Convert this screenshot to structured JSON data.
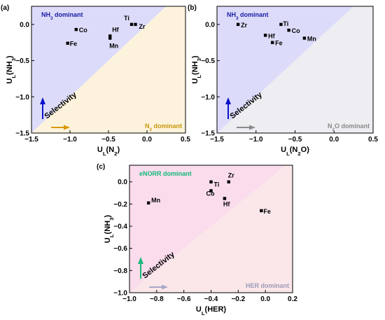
{
  "chart_data": [
    {
      "type": "scatter",
      "panel_label": "(a)",
      "xlim": [
        -1.5,
        0.5
      ],
      "ylim": [
        -1.5,
        0.25
      ],
      "xticks": [
        -1.5,
        -1.0,
        -0.5,
        0.0,
        0.5
      ],
      "yticks": [
        -1.5,
        -1.0,
        -0.5,
        0.0
      ],
      "xticklabels": [
        "−1.5",
        "−1.0",
        "−0.5",
        "0.0",
        "0.5"
      ],
      "yticklabels": [
        "−1.5",
        "−1.0",
        "−0.5",
        "0.0"
      ],
      "xlabel": {
        "main": "U",
        "sub": "L",
        "rest": "(N",
        "rest_sub": "2",
        "close": ")"
      },
      "ylabel": {
        "main": "U",
        "sub": "L",
        "rest": "(NH",
        "rest_sub": "3",
        "close": ")"
      },
      "upper_region": {
        "text": "NH",
        "sub": "3",
        "rest": " dominant",
        "color": "#1a1aa6",
        "fill": "#dcdcfa"
      },
      "lower_region": {
        "text": "N",
        "sub": "2",
        "rest": " dominant",
        "color": "#c8960a",
        "fill": "#fdf3dc"
      },
      "selectivity": "Selectivity",
      "up_arrow_color": "#0a12c8",
      "right_arrow_color": "#d89a00",
      "points": [
        {
          "name": "Co",
          "x": -0.92,
          "y": -0.07
        },
        {
          "name": "Fe",
          "x": -1.03,
          "y": -0.26
        },
        {
          "name": "Hf",
          "x": -0.48,
          "y": -0.16
        },
        {
          "name": "Mn",
          "x": -0.48,
          "y": -0.19
        },
        {
          "name": "Ti",
          "x": -0.2,
          "y": 0.0
        },
        {
          "name": "Zr",
          "x": -0.15,
          "y": 0.0
        }
      ]
    },
    {
      "type": "scatter",
      "panel_label": "(b)",
      "xlim": [
        -1.5,
        0.5
      ],
      "ylim": [
        -1.5,
        0.25
      ],
      "xticks": [
        -1.5,
        -1.0,
        -0.5,
        0.0,
        0.5
      ],
      "yticks": [
        -1.5,
        -1.0,
        -0.5,
        0.0
      ],
      "xticklabels": [
        "−1.5",
        "−1.0",
        "−0.5",
        "0.0",
        "0.5"
      ],
      "yticklabels": [
        "−1.5",
        "−1.0",
        "−0.5",
        "0.0"
      ],
      "xlabel": {
        "main": "U",
        "sub": "L",
        "rest": "(N",
        "rest_sub": "2",
        "close": "O)"
      },
      "ylabel": {
        "main": "U",
        "sub": "L",
        "rest": "(NH",
        "rest_sub": "3",
        "close": ")"
      },
      "upper_region": {
        "text": "NH",
        "sub": "3",
        "rest": " dominant",
        "color": "#1a1aa6",
        "fill": "#dcdcfa"
      },
      "lower_region": {
        "text": "N",
        "sub": "2",
        "rest": "O dominant",
        "color": "#8a8a8a",
        "fill": "#ededf2"
      },
      "selectivity": "Selectivity",
      "up_arrow_color": "#0a12c8",
      "right_arrow_color": "#8a8a8a",
      "points": [
        {
          "name": "Zr",
          "x": -1.23,
          "y": 0.0
        },
        {
          "name": "Hf",
          "x": -0.88,
          "y": -0.15
        },
        {
          "name": "Fe",
          "x": -0.79,
          "y": -0.25
        },
        {
          "name": "Ti",
          "x": -0.68,
          "y": 0.0
        },
        {
          "name": "Co",
          "x": -0.58,
          "y": -0.08
        },
        {
          "name": "Mn",
          "x": -0.38,
          "y": -0.19
        }
      ]
    },
    {
      "type": "scatter",
      "panel_label": "(c)",
      "xlim": [
        -1.0,
        0.2
      ],
      "ylim": [
        -1.0,
        0.15
      ],
      "xticks": [
        -1.0,
        -0.8,
        -0.6,
        -0.4,
        -0.2,
        0.0,
        0.2
      ],
      "yticks": [
        -1.0,
        -0.8,
        -0.6,
        -0.4,
        -0.2,
        0.0
      ],
      "xticklabels": [
        "−1.0",
        "−0.8",
        "−0.6",
        "−0.4",
        "−0.2",
        "0.0",
        "0.2"
      ],
      "yticklabels": [
        "−1.0",
        "−0.8",
        "−0.6",
        "−0.4",
        "−0.2",
        "0.0"
      ],
      "xlabel": {
        "main": "U",
        "sub": "L",
        "rest": "(HER)",
        "rest_sub": "",
        "close": ""
      },
      "ylabel": {
        "main": "U",
        "sub": "L",
        "rest": "(NH",
        "rest_sub": "3",
        "close": ")"
      },
      "upper_region": {
        "text": "eNORR dominant",
        "sub": "",
        "rest": "",
        "color": "#14b87a",
        "fill": "#fadcec"
      },
      "lower_region": {
        "text": "HER dominant",
        "sub": "",
        "rest": "",
        "color": "#9a9ab8",
        "fill": "#fbe7e9"
      },
      "selectivity": "Selectivity",
      "up_arrow_color": "#1ab87a",
      "right_arrow_color": "#a8a8c8",
      "points": [
        {
          "name": "Mn",
          "x": -0.86,
          "y": -0.19
        },
        {
          "name": "Ti",
          "x": -0.4,
          "y": 0.0
        },
        {
          "name": "Co",
          "x": -0.4,
          "y": -0.08
        },
        {
          "name": "Zr",
          "x": -0.27,
          "y": 0.0
        },
        {
          "name": "Hf",
          "x": -0.3,
          "y": -0.15
        },
        {
          "name": "Fe",
          "x": -0.03,
          "y": -0.26
        }
      ]
    }
  ]
}
